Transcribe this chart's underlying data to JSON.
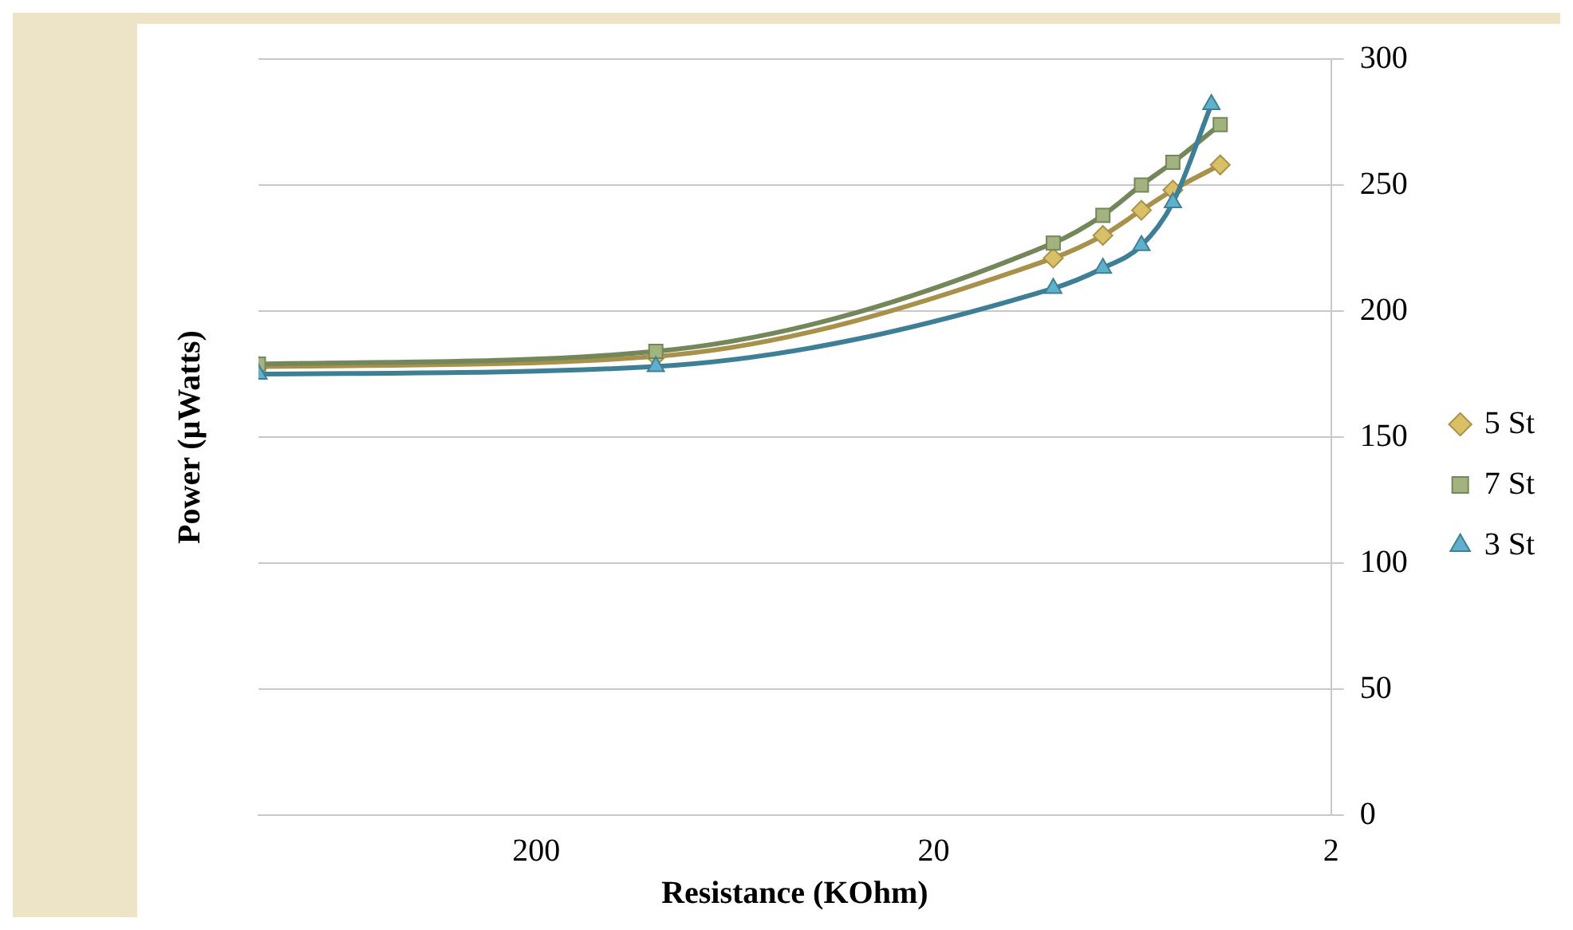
{
  "chart_data": {
    "type": "line",
    "xlabel": "Resistance (KOhm)",
    "ylabel": "Power (µWatts)",
    "log": "x",
    "xlim": [
      1000,
      2
    ],
    "xticks": [
      200,
      20,
      2
    ],
    "ylim": [
      0,
      300
    ],
    "yticks": [
      0,
      50,
      100,
      150,
      200,
      250,
      300
    ],
    "grid": "y",
    "legend": "right",
    "series": [
      {
        "name": "5 St",
        "color": "#a8914a",
        "marker": "diamond",
        "x": [
          1000,
          100,
          10,
          7.5,
          6,
          5,
          3.8
        ],
        "values": [
          178,
          182,
          221,
          230,
          240,
          248,
          258
        ]
      },
      {
        "name": "7 St",
        "color": "#74875a",
        "marker": "square",
        "x": [
          1000,
          100,
          10,
          7.5,
          6,
          5,
          3.8
        ],
        "values": [
          179,
          184,
          227,
          238,
          250,
          259,
          274
        ]
      },
      {
        "name": "3 St",
        "color": "#3f7f96",
        "marker": "triangle",
        "x": [
          1000,
          100,
          10,
          7.5,
          6,
          5,
          4
        ],
        "values": [
          175,
          178,
          209,
          217,
          226,
          243,
          282
        ]
      }
    ]
  }
}
